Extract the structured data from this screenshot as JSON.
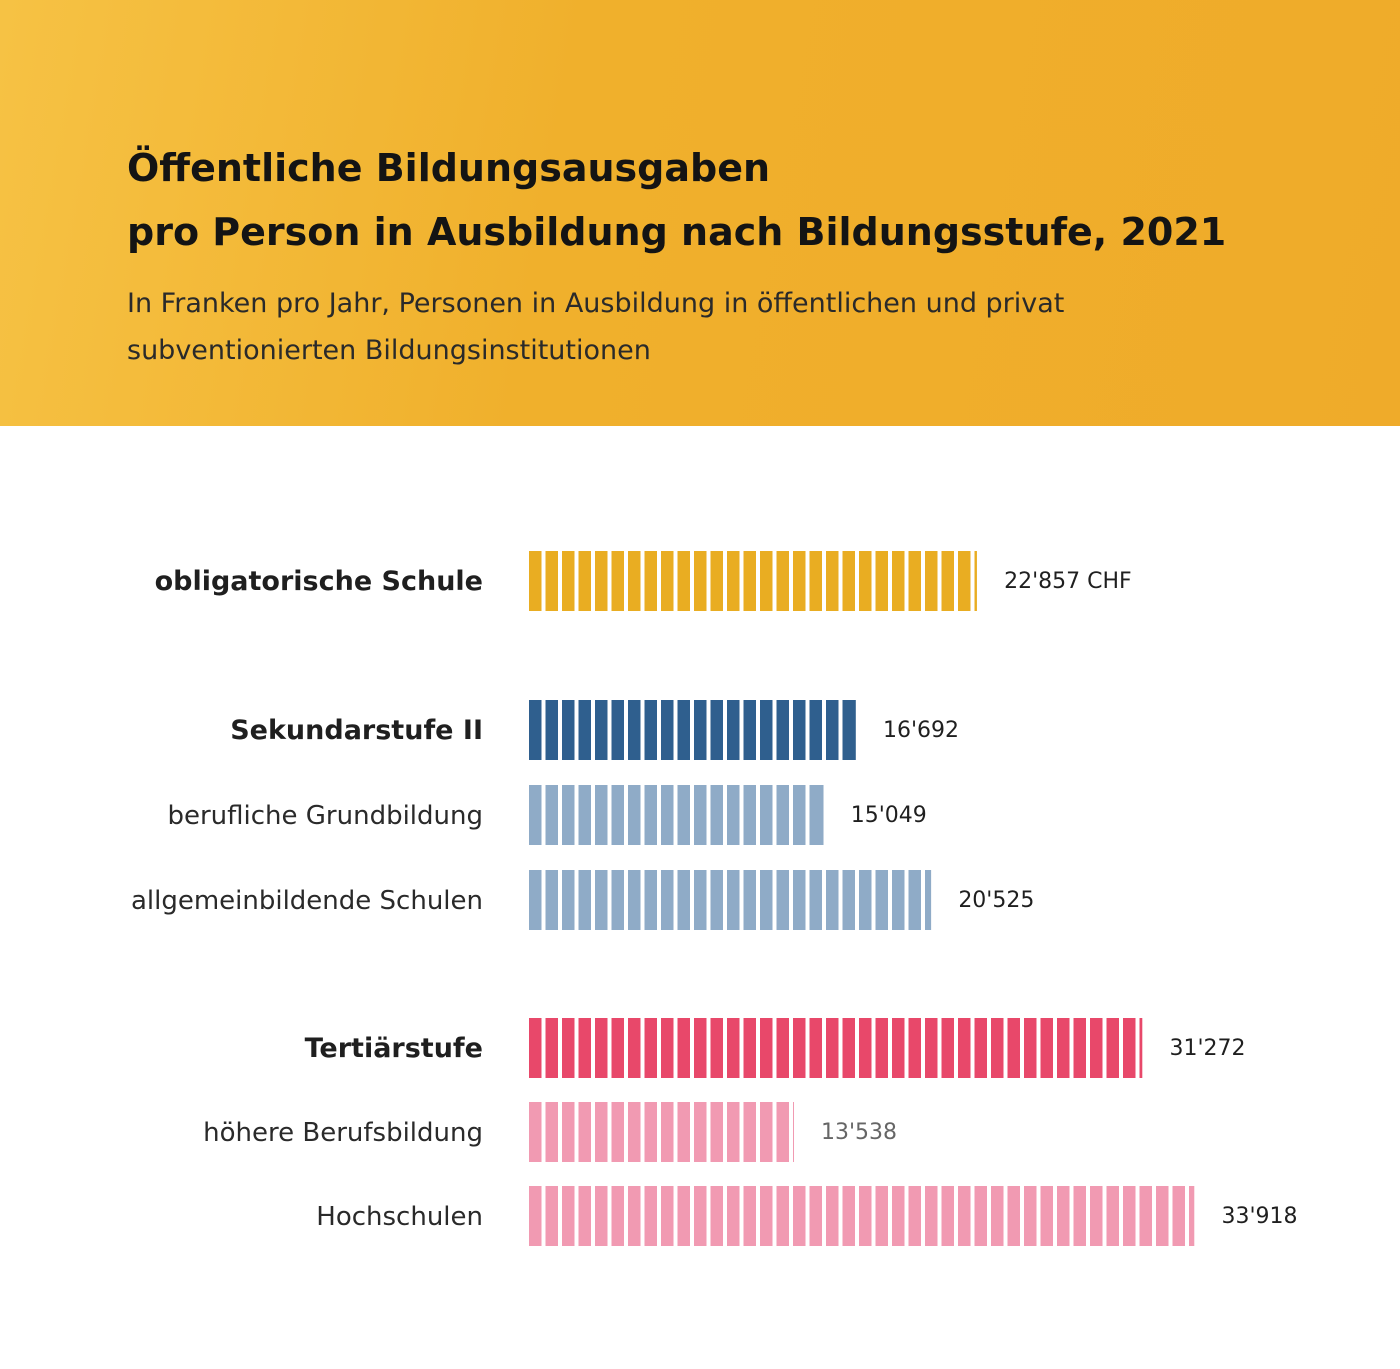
{
  "header": {
    "title_line1": "Öffentliche Bildungsausgaben",
    "title_line2": "pro Person in Ausbildung nach Bildungsstufe, 2021",
    "subtitle_line1": "In Franken pro Jahr, Personen in Ausbildung in öffentlichen und privat",
    "subtitle_line2": "subventionierten Bildungsinstitutionen"
  },
  "chart_data": {
    "type": "bar",
    "orientation": "horizontal",
    "unit": "CHF",
    "categories": [
      "obligatorische Schule",
      "Sekundarstufe II",
      "berufliche Grundbildung",
      "allgemeinbildende Schulen",
      "Tertiärstufe",
      "höhere Berufsbildung",
      "Hochschulen"
    ],
    "values": [
      22857,
      16692,
      15049,
      20525,
      31272,
      13538,
      33918
    ],
    "value_labels": [
      "22'857 CHF",
      "16'692",
      "15'049",
      "20'525",
      "31'272",
      "13'538",
      "33'918"
    ],
    "level": [
      "main",
      "main",
      "sub",
      "sub",
      "main",
      "sub",
      "sub"
    ],
    "colors": [
      "#e9ad22",
      "#2f5f8e",
      "#8fabc7",
      "#8fabc7",
      "#e8486a",
      "#f19ab2",
      "#f19ab2"
    ],
    "value_label_colors": [
      "#1f1f1f",
      "#1f1f1f",
      "#1f1f1f",
      "#1f1f1f",
      "#1f1f1f",
      "#666666",
      "#1f1f1f"
    ],
    "xlim": [
      0,
      34000
    ],
    "grid": false,
    "legend": "none"
  }
}
